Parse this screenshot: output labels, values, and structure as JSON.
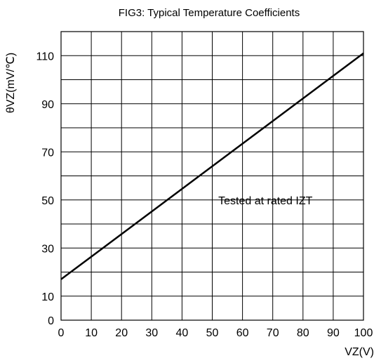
{
  "chart_data": {
    "type": "line",
    "title": "FIG3: Typical Temperature Coefficients",
    "xlabel": "VZ(V)",
    "ylabel": "θVZ(mV/℃)",
    "xlim": [
      0,
      100
    ],
    "ylim": [
      0,
      120
    ],
    "x_ticks": [
      "0",
      "10",
      "20",
      "30",
      "40",
      "50",
      "60",
      "70",
      "80",
      "90",
      "100"
    ],
    "y_ticks": [
      "0",
      "10",
      "30",
      "50",
      "70",
      "90",
      "110"
    ],
    "y_tick_values": [
      0,
      10,
      30,
      50,
      70,
      90,
      110
    ],
    "grid": true,
    "series": [
      {
        "x": [
          0,
          100
        ],
        "y": [
          17,
          111
        ]
      }
    ],
    "annotation": {
      "text": "Tested at rated IZT",
      "x": 52,
      "y": 50
    }
  }
}
